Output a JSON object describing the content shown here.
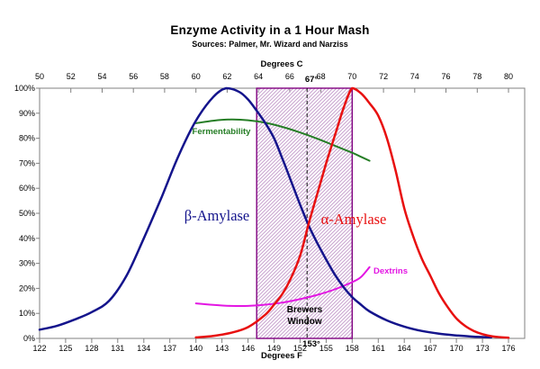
{
  "title": "Enzyme Activity in a 1 Hour Mash",
  "subtitle": "Sources: Palmer, Mr. Wizard and Narziss",
  "chart_data": {
    "type": "line",
    "title": "Enzyme Activity in a 1 Hour Mash",
    "subtitle": "Sources: Palmer, Mr. Wizard and Narziss",
    "background_color": "#ffffff",
    "axis_color": "#808080",
    "grid": "off",
    "axes": {
      "top_x": {
        "label": "Degrees C",
        "min": 50,
        "max": 80,
        "ticks": [
          50,
          52,
          54,
          56,
          58,
          60,
          62,
          64,
          66,
          68,
          70,
          72,
          74,
          76,
          78,
          80
        ]
      },
      "bottom_x": {
        "label": "Degrees F",
        "min": 122,
        "max": 176,
        "ticks": [
          122,
          125,
          128,
          131,
          134,
          137,
          140,
          143,
          146,
          149,
          152,
          155,
          158,
          161,
          164,
          167,
          170,
          173,
          176
        ]
      },
      "y": {
        "min": 0,
        "max": 100,
        "ticks": [
          {
            "value": 0,
            "label": "0%"
          },
          {
            "value": 10,
            "label": "10%"
          },
          {
            "value": 20,
            "label": "20%"
          },
          {
            "value": 30,
            "label": "30%"
          },
          {
            "value": 40,
            "label": "40%"
          },
          {
            "value": 50,
            "label": "50%"
          },
          {
            "value": 60,
            "label": "60%"
          },
          {
            "value": 70,
            "label": "70%"
          },
          {
            "value": 80,
            "label": "80%"
          },
          {
            "value": 90,
            "label": "90%"
          },
          {
            "value": 100,
            "label": "100%"
          }
        ]
      }
    },
    "series": [
      {
        "name": "β-Amylase",
        "color": "#14148c",
        "width": 2.5,
        "points_f_pct": [
          [
            122,
            3.5
          ],
          [
            124,
            5
          ],
          [
            126,
            7.5
          ],
          [
            128,
            10.5
          ],
          [
            130,
            15
          ],
          [
            132,
            25
          ],
          [
            134,
            40
          ],
          [
            136,
            56
          ],
          [
            138,
            73
          ],
          [
            140,
            87
          ],
          [
            142,
            96.5
          ],
          [
            143.5,
            100
          ],
          [
            145,
            98.5
          ],
          [
            146,
            95.5
          ],
          [
            147,
            91
          ],
          [
            148,
            86
          ],
          [
            149,
            80
          ],
          [
            150,
            71.5
          ],
          [
            151,
            62.5
          ],
          [
            152,
            53.5
          ],
          [
            153,
            45
          ],
          [
            154,
            38
          ],
          [
            155,
            31.5
          ],
          [
            156,
            25.5
          ],
          [
            157,
            20.5
          ],
          [
            158,
            16.5
          ],
          [
            159,
            13.5
          ],
          [
            160,
            10.8
          ],
          [
            162,
            7.2
          ],
          [
            164,
            4.7
          ],
          [
            166,
            3
          ],
          [
            168,
            1.9
          ],
          [
            170,
            1.2
          ],
          [
            172,
            0.7
          ],
          [
            174,
            0.4
          ]
        ]
      },
      {
        "name": "α-Amylase",
        "color": "#e81010",
        "width": 2.5,
        "points_f_pct": [
          [
            140,
            0.4
          ],
          [
            142,
            1
          ],
          [
            144,
            2.2
          ],
          [
            146,
            4.5
          ],
          [
            148,
            9.5
          ],
          [
            149,
            13.5
          ],
          [
            150,
            18
          ],
          [
            151,
            24.5
          ],
          [
            152,
            33
          ],
          [
            153,
            46
          ],
          [
            154,
            58
          ],
          [
            155,
            70
          ],
          [
            156,
            81
          ],
          [
            157,
            92
          ],
          [
            158,
            100
          ],
          [
            159,
            98
          ],
          [
            160,
            94
          ],
          [
            161,
            89
          ],
          [
            162,
            80
          ],
          [
            163,
            67
          ],
          [
            164,
            52
          ],
          [
            165,
            41
          ],
          [
            166,
            32
          ],
          [
            167,
            25
          ],
          [
            168,
            18
          ],
          [
            169,
            12.5
          ],
          [
            170,
            8
          ],
          [
            171,
            5
          ],
          [
            172,
            3
          ],
          [
            173,
            1.7
          ],
          [
            174,
            0.9
          ],
          [
            175,
            0.5
          ],
          [
            176,
            0.3
          ]
        ]
      },
      {
        "name": "Fermentability",
        "color": "#267e26",
        "width": 2,
        "points_f_pct": [
          [
            140,
            86
          ],
          [
            142,
            87
          ],
          [
            144,
            87.5
          ],
          [
            146,
            87.2
          ],
          [
            148,
            86.2
          ],
          [
            150,
            84.5
          ],
          [
            152,
            82.3
          ],
          [
            154,
            79.8
          ],
          [
            156,
            77
          ],
          [
            158,
            74.2
          ],
          [
            159,
            72.6
          ],
          [
            160,
            71
          ]
        ]
      },
      {
        "name": "Dextrins",
        "color": "#e316e3",
        "width": 2,
        "points_f_pct": [
          [
            140,
            14
          ],
          [
            142,
            13.4
          ],
          [
            144,
            13
          ],
          [
            146,
            13
          ],
          [
            148,
            13.5
          ],
          [
            150,
            14.3
          ],
          [
            152,
            15.7
          ],
          [
            154,
            17.4
          ],
          [
            156,
            19.6
          ],
          [
            158,
            22.5
          ],
          [
            159,
            24.5
          ],
          [
            160,
            28.5
          ]
        ]
      }
    ],
    "annotations": {
      "brewers_window": {
        "label": "Brewers Window",
        "from_f": 147,
        "to_f": 158,
        "border_color": "#800080",
        "hatch_color": "#c8a4cf"
      },
      "optimum": {
        "temp_c_label": "67°",
        "temp_f_label": "153°",
        "line_f": 152.8,
        "line_style": "dashed",
        "color": "#111111"
      }
    }
  }
}
